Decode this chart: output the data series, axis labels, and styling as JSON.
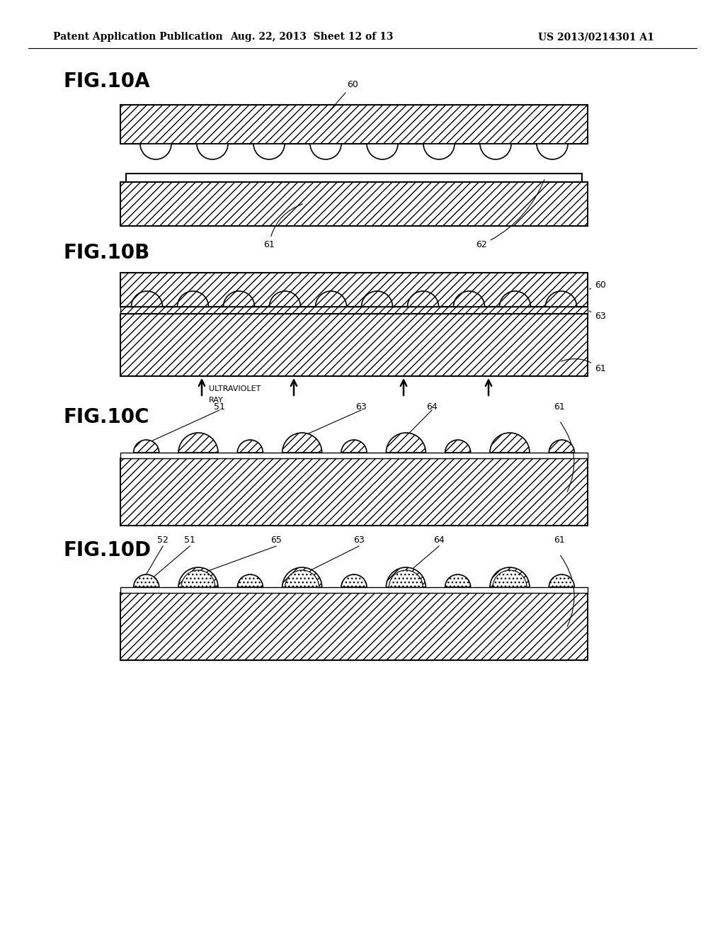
{
  "header_left": "Patent Application Publication",
  "header_mid": "Aug. 22, 2013  Sheet 12 of 13",
  "header_right": "US 2013/0214301 A1",
  "bg_color": "#ffffff",
  "figA_label": "FIG.10A",
  "figB_label": "FIG.10B",
  "figC_label": "FIG.10C",
  "figD_label": "FIG.10D",
  "uv_text1": "ULTRAVIOLET",
  "uv_text2": "RAY"
}
